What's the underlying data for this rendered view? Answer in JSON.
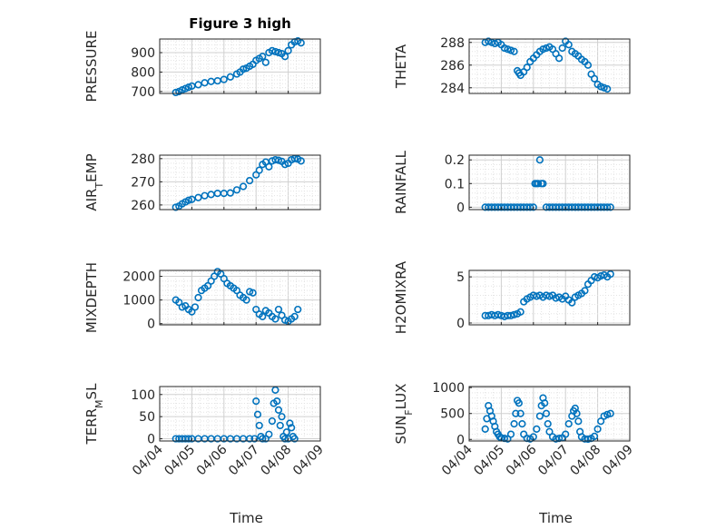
{
  "page": {
    "title": "Figure 3 high"
  },
  "colors": {
    "marker": "#0072BD",
    "grid": "#c8c8c8",
    "axis": "#262626"
  },
  "chart_data": [
    {
      "type": "scatter",
      "id": "pressure",
      "title": "Figure 3 high",
      "ylabel": "PRESSURE",
      "ylabel_sub": "",
      "xlabel": "",
      "xlim": [
        "04/04",
        "04/09"
      ],
      "ylim": [
        690,
        970
      ],
      "yticks": [
        700,
        800,
        900
      ],
      "xticks": [],
      "grid": true,
      "x": [
        "04/04.5",
        "04/04.6",
        "04/04.7",
        "04/04.8",
        "04/04.9",
        "04/05.0",
        "04/05.2",
        "04/05.4",
        "04/05.6",
        "04/05.8",
        "04/06.0",
        "04/06.2",
        "04/06.4",
        "04/06.5",
        "04/06.6",
        "04/06.7",
        "04/06.8",
        "04/06.9",
        "04/07.0",
        "04/07.1",
        "04/07.2",
        "04/07.3",
        "04/07.4",
        "04/07.5",
        "04/07.6",
        "04/07.7",
        "04/07.8",
        "04/07.9",
        "04/08.0",
        "04/08.1",
        "04/08.2",
        "04/08.3",
        "04/08.4"
      ],
      "x_days": [
        0.5,
        0.6,
        0.7,
        0.8,
        0.9,
        1.0,
        1.2,
        1.4,
        1.6,
        1.8,
        2.0,
        2.2,
        2.4,
        2.5,
        2.6,
        2.7,
        2.8,
        2.9,
        3.0,
        3.1,
        3.2,
        3.3,
        3.4,
        3.5,
        3.6,
        3.7,
        3.8,
        3.9,
        4.0,
        4.1,
        4.2,
        4.3,
        4.4
      ],
      "y": [
        695,
        700,
        708,
        715,
        722,
        728,
        735,
        745,
        752,
        755,
        762,
        775,
        790,
        800,
        815,
        820,
        830,
        840,
        860,
        870,
        880,
        850,
        900,
        910,
        905,
        900,
        895,
        880,
        910,
        940,
        955,
        960,
        950
      ]
    },
    {
      "type": "scatter",
      "id": "theta",
      "title": "",
      "ylabel": "THETA",
      "ylabel_sub": "",
      "xlabel": "",
      "xlim": [
        "04/04",
        "04/09"
      ],
      "ylim": [
        283.5,
        288.3
      ],
      "yticks": [
        284,
        286,
        288
      ],
      "xticks": [],
      "grid": true,
      "x_days": [
        0.5,
        0.6,
        0.7,
        0.8,
        0.9,
        1.0,
        1.1,
        1.2,
        1.3,
        1.4,
        1.5,
        1.55,
        1.6,
        1.7,
        1.8,
        1.9,
        2.0,
        2.1,
        2.2,
        2.3,
        2.4,
        2.5,
        2.6,
        2.7,
        2.8,
        2.9,
        3.0,
        3.1,
        3.2,
        3.3,
        3.4,
        3.5,
        3.6,
        3.7,
        3.8,
        3.9,
        4.0,
        4.1,
        4.2,
        4.3
      ],
      "y": [
        288,
        288.1,
        288,
        287.9,
        288,
        287.8,
        287.5,
        287.4,
        287.3,
        287.2,
        285.5,
        285.3,
        285.1,
        285.4,
        285.8,
        286.3,
        286.6,
        286.9,
        287.2,
        287.4,
        287.5,
        287.6,
        287.4,
        287,
        286.6,
        287.5,
        288.1,
        287.8,
        287.2,
        287,
        286.8,
        286.5,
        286.3,
        286,
        285.2,
        284.8,
        284.3,
        284.1,
        284,
        283.9
      ]
    },
    {
      "type": "scatter",
      "id": "air-temp",
      "title": "",
      "ylabel": "AIR",
      "ylabel_sub": "T",
      "ylabel_rest": "EMP",
      "xlabel": "",
      "xlim": [
        "04/04",
        "04/09"
      ],
      "ylim": [
        258,
        281.5
      ],
      "yticks": [
        260,
        270,
        280
      ],
      "xticks": [],
      "grid": true,
      "x_days": [
        0.5,
        0.6,
        0.7,
        0.8,
        0.9,
        1.0,
        1.2,
        1.4,
        1.6,
        1.8,
        2.0,
        2.2,
        2.4,
        2.6,
        2.8,
        3.0,
        3.1,
        3.2,
        3.3,
        3.4,
        3.5,
        3.6,
        3.7,
        3.8,
        3.9,
        4.0,
        4.1,
        4.2,
        4.3,
        4.4
      ],
      "y": [
        259,
        259.5,
        260.5,
        261.3,
        262,
        262.4,
        263.2,
        264,
        264.5,
        265,
        265,
        265.2,
        266.5,
        268,
        270.5,
        273,
        275,
        277.5,
        278.5,
        276.5,
        279,
        279.5,
        279.3,
        278.8,
        277.5,
        278,
        279.5,
        280,
        279.8,
        279
      ]
    },
    {
      "type": "scatter",
      "id": "rainfall",
      "title": "",
      "ylabel": "RAINFALL",
      "ylabel_sub": "",
      "xlabel": "",
      "xlim": [
        "04/04",
        "04/09"
      ],
      "ylim": [
        -0.01,
        0.22
      ],
      "yticks": [
        0,
        0.1,
        0.2
      ],
      "ytick_labels": [
        "0",
        "0.1",
        "0.2"
      ],
      "xticks": [],
      "grid": true,
      "x_days": [
        0.5,
        0.6,
        0.7,
        0.8,
        0.9,
        1.0,
        1.1,
        1.2,
        1.3,
        1.4,
        1.5,
        1.6,
        1.7,
        1.8,
        1.9,
        2.0,
        2.05,
        2.1,
        2.15,
        2.2,
        2.25,
        2.3,
        2.4,
        2.5,
        2.6,
        2.7,
        2.8,
        2.9,
        3.0,
        3.1,
        3.2,
        3.3,
        3.4,
        3.5,
        3.6,
        3.7,
        3.8,
        3.9,
        4.0,
        4.1,
        4.2,
        4.3,
        4.4
      ],
      "y": [
        0,
        0,
        0,
        0,
        0,
        0,
        0,
        0,
        0,
        0,
        0,
        0,
        0,
        0,
        0,
        0,
        0.1,
        0.1,
        0.1,
        0.2,
        0.1,
        0.1,
        0,
        0,
        0,
        0,
        0,
        0,
        0,
        0,
        0,
        0,
        0,
        0,
        0,
        0,
        0,
        0,
        0,
        0,
        0,
        0,
        0
      ]
    },
    {
      "type": "scatter",
      "id": "mixdepth",
      "title": "",
      "ylabel": "MIXDEPTH",
      "ylabel_sub": "",
      "xlabel": "",
      "xlim": [
        "04/04",
        "04/09"
      ],
      "ylim": [
        -50,
        2250
      ],
      "yticks": [
        0,
        1000,
        2000
      ],
      "xticks": [],
      "grid": true,
      "x_days": [
        0.5,
        0.6,
        0.7,
        0.8,
        0.9,
        1.0,
        1.1,
        1.2,
        1.3,
        1.4,
        1.5,
        1.6,
        1.7,
        1.8,
        1.9,
        2.0,
        2.1,
        2.2,
        2.3,
        2.4,
        2.5,
        2.6,
        2.7,
        2.8,
        2.9,
        3.0,
        3.1,
        3.2,
        3.3,
        3.4,
        3.5,
        3.6,
        3.7,
        3.8,
        3.9,
        4.0,
        4.1,
        4.2,
        4.3
      ],
      "y": [
        1000,
        900,
        700,
        750,
        600,
        500,
        700,
        1100,
        1400,
        1500,
        1600,
        1800,
        2000,
        2200,
        2100,
        1900,
        1700,
        1600,
        1500,
        1400,
        1200,
        1100,
        1000,
        1350,
        1300,
        600,
        400,
        300,
        550,
        450,
        300,
        200,
        600,
        350,
        150,
        100,
        200,
        300,
        600
      ]
    },
    {
      "type": "scatter",
      "id": "h2omixra",
      "title": "",
      "ylabel": "H2OMIXRA",
      "ylabel_sub": "",
      "xlabel": "",
      "xlim": [
        "04/04",
        "04/09"
      ],
      "ylim": [
        -0.2,
        5.7
      ],
      "yticks": [
        0,
        5
      ],
      "xticks": [],
      "grid": true,
      "x_days": [
        0.5,
        0.6,
        0.7,
        0.8,
        0.9,
        1.0,
        1.1,
        1.2,
        1.3,
        1.4,
        1.5,
        1.6,
        1.7,
        1.8,
        1.9,
        2.0,
        2.1,
        2.2,
        2.3,
        2.4,
        2.5,
        2.6,
        2.7,
        2.8,
        2.9,
        3.0,
        3.1,
        3.2,
        3.3,
        3.4,
        3.5,
        3.6,
        3.7,
        3.8,
        3.9,
        4.0,
        4.1,
        4.2,
        4.3,
        4.4
      ],
      "y": [
        0.8,
        0.8,
        0.9,
        0.8,
        0.9,
        0.8,
        0.7,
        0.8,
        0.8,
        0.9,
        1,
        1.2,
        2.3,
        2.6,
        2.8,
        3,
        2.9,
        3,
        2.8,
        3,
        2.9,
        3,
        2.7,
        2.8,
        2.6,
        2.9,
        2.5,
        2.2,
        2.8,
        3,
        3.2,
        3.5,
        4.2,
        4.6,
        5,
        4.9,
        5.1,
        5.2,
        5,
        5.3
      ]
    },
    {
      "type": "scatter",
      "id": "terr-msl",
      "title": "",
      "ylabel": "TERR",
      "ylabel_sub": "M",
      "ylabel_rest": "SL",
      "xlabel": "Time",
      "xlim": [
        "04/04",
        "04/09"
      ],
      "ylim": [
        -5,
        118
      ],
      "yticks": [
        0,
        50,
        100
      ],
      "xticks": [
        "04/04",
        "04/05",
        "04/06",
        "04/07",
        "04/08",
        "04/09"
      ],
      "grid": true,
      "x_days": [
        0.5,
        0.6,
        0.7,
        0.8,
        0.9,
        1.0,
        1.2,
        1.4,
        1.6,
        1.8,
        2.0,
        2.2,
        2.4,
        2.6,
        2.8,
        2.95,
        3.0,
        3.05,
        3.1,
        3.15,
        3.2,
        3.3,
        3.4,
        3.5,
        3.55,
        3.6,
        3.65,
        3.7,
        3.75,
        3.8,
        3.85,
        3.9,
        3.95,
        4.0,
        4.05,
        4.1,
        4.15,
        4.2
      ],
      "y": [
        0,
        0,
        0,
        0,
        0,
        0,
        0,
        0,
        0,
        0,
        0,
        0,
        0,
        0,
        0,
        0,
        85,
        55,
        30,
        5,
        0,
        0,
        10,
        40,
        80,
        110,
        85,
        65,
        30,
        50,
        5,
        0,
        15,
        0,
        35,
        25,
        5,
        0
      ]
    },
    {
      "type": "scatter",
      "id": "sun-flux",
      "title": "",
      "ylabel": "SUN",
      "ylabel_sub": "F",
      "ylabel_rest": "LUX",
      "xlabel": "Time",
      "xlim": [
        "04/04",
        "04/09"
      ],
      "ylim": [
        -30,
        1020
      ],
      "yticks": [
        0,
        500,
        1000
      ],
      "xticks": [
        "04/04",
        "04/05",
        "04/06",
        "04/07",
        "04/08",
        "04/09"
      ],
      "grid": true,
      "x_days": [
        0.5,
        0.55,
        0.6,
        0.65,
        0.7,
        0.75,
        0.8,
        0.85,
        0.9,
        0.95,
        1.0,
        1.1,
        1.2,
        1.3,
        1.4,
        1.45,
        1.5,
        1.55,
        1.6,
        1.65,
        1.7,
        1.8,
        1.9,
        2.0,
        2.1,
        2.2,
        2.25,
        2.3,
        2.35,
        2.4,
        2.45,
        2.5,
        2.6,
        2.7,
        2.8,
        2.9,
        3.0,
        3.1,
        3.2,
        3.25,
        3.3,
        3.35,
        3.4,
        3.45,
        3.5,
        3.6,
        3.7,
        3.8,
        3.9,
        4.0,
        4.1,
        4.2,
        4.3,
        4.4
      ],
      "y": [
        200,
        400,
        650,
        550,
        450,
        350,
        250,
        150,
        100,
        50,
        30,
        20,
        10,
        100,
        300,
        500,
        750,
        700,
        500,
        300,
        100,
        20,
        10,
        50,
        200,
        450,
        650,
        800,
        700,
        500,
        300,
        150,
        50,
        10,
        20,
        30,
        100,
        300,
        450,
        550,
        600,
        500,
        350,
        150,
        50,
        10,
        5,
        20,
        60,
        200,
        350,
        450,
        480,
        500
      ]
    }
  ]
}
